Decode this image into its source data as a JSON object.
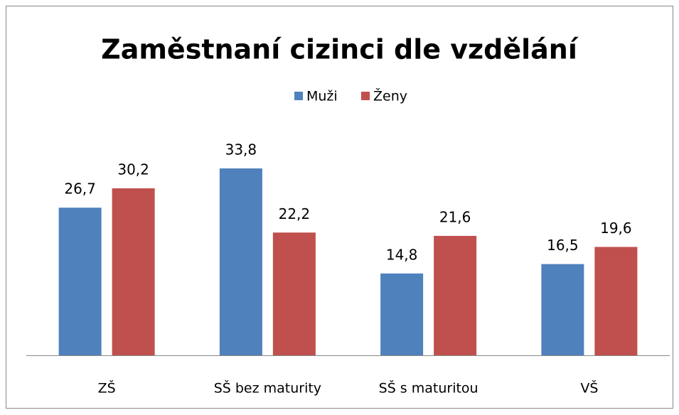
{
  "chart_data": {
    "type": "bar",
    "title": "Zaměstnaní cizinci dle vzdělání",
    "categories": [
      "ZŠ",
      "SŠ bez maturity",
      "SŠ s maturitou",
      "VŠ"
    ],
    "series": [
      {
        "name": "Muži",
        "color": "#4f81bd",
        "values": [
          26.7,
          33.8,
          14.8,
          16.5
        ],
        "value_labels": [
          "26,7",
          "33,8",
          "14,8",
          "16,5"
        ]
      },
      {
        "name": "Ženy",
        "color": "#c0504d",
        "values": [
          30.2,
          22.2,
          21.6,
          19.6
        ],
        "value_labels": [
          "30,2",
          "22,2",
          "21,6",
          "19,6"
        ]
      }
    ],
    "legend": "top"
  }
}
